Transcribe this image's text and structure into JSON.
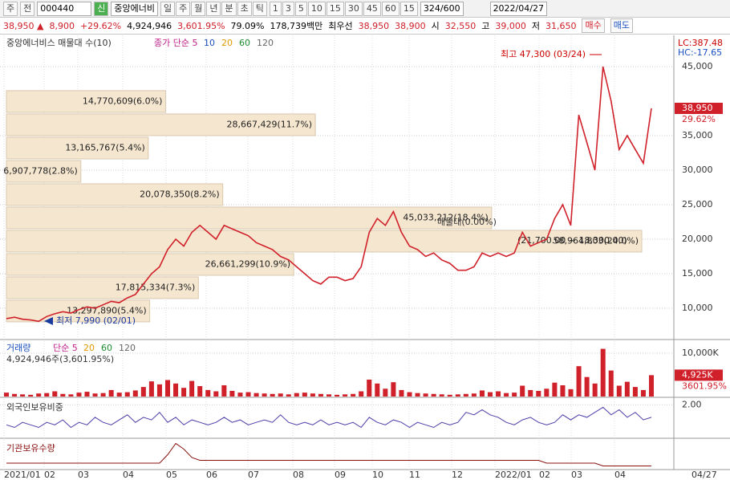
{
  "toolbar": {
    "market": "주",
    "prev": "전",
    "code": "000440",
    "badge": "신",
    "name": "중앙에너비",
    "periods": [
      "일",
      "주",
      "월",
      "년",
      "분",
      "초",
      "틱"
    ],
    "intervals": [
      "1",
      "3",
      "5",
      "10",
      "15",
      "30",
      "45",
      "60",
      "15"
    ],
    "count": "324",
    "count_max": "/600",
    "date": "2022/04/27"
  },
  "quote": {
    "price": "38,950 ▲",
    "change": "8,900",
    "rate": "+29.62%",
    "volume": "4,924,946",
    "volume_rate": "3,601.95%",
    "turnover": "79.09%",
    "amount": "178,739백만",
    "best_label": "최우선",
    "ask": "38,950",
    "bid": "38,900",
    "open_label": "시",
    "open": "32,550",
    "high_label": "고",
    "high": "39,000",
    "low_label": "저",
    "low": "31,650",
    "buy": "매수",
    "sell": "매도"
  },
  "chart_data": [
    {
      "type": "line",
      "title": "중앙에너비스 매물대 수(10)",
      "ma_legend": [
        "종가 단순 5",
        "10",
        "20",
        "60",
        "120"
      ],
      "values": [
        8500,
        8700,
        8400,
        8300,
        8100,
        8800,
        9200,
        9500,
        9300,
        9800,
        10200,
        10000,
        10500,
        11000,
        10800,
        11500,
        12000,
        13500,
        15000,
        16000,
        18500,
        20000,
        19000,
        21000,
        22000,
        21000,
        20000,
        22000,
        21500,
        21000,
        20500,
        19500,
        19000,
        18500,
        17500,
        17000,
        16000,
        15000,
        14000,
        13500,
        14500,
        14500,
        14000,
        14300,
        16000,
        21000,
        23000,
        22000,
        24000,
        21000,
        19000,
        18500,
        17500,
        18000,
        17000,
        16500,
        15500,
        15500,
        16000,
        18000,
        17500,
        18000,
        17500,
        18000,
        21000,
        19000,
        19500,
        20000,
        23000,
        25000,
        22000,
        38000,
        34000,
        30000,
        45000,
        40000,
        33000,
        35000,
        33000,
        31000,
        38950
      ],
      "color": "#d0202a",
      "ylim": [
        5580,
        49530
      ],
      "yticks": [
        {
          "value": 10000,
          "label": "10,000"
        },
        {
          "value": 15000,
          "label": "15,000"
        },
        {
          "value": 20000,
          "label": "20,000"
        },
        {
          "value": 25000,
          "label": "25,000"
        },
        {
          "value": 30000,
          "label": "30,000"
        },
        {
          "value": 35000,
          "label": "35,000"
        },
        {
          "value": 45000,
          "label": "45,000"
        }
      ],
      "profile": {
        "bins": [
          7910,
          11282,
          14654,
          18026,
          21398,
          24770,
          28142,
          31514,
          34886,
          38258,
          41630
        ],
        "values": [
          13297890,
          17815334,
          26661299,
          58964803,
          45033212,
          20078350,
          6907778,
          13165767,
          28667429,
          14770609
        ],
        "value_labels": [
          "13,297,890(5.4%)",
          "17,815,334(7.3%)",
          "26,661,299(10.9%)",
          "58,964,803(24.0%)",
          "45,033,212(18.4%)",
          "20,078,350(8.2%)",
          "6,907,778(2.8%)",
          "13,165,767(5.4%)",
          "28,667,429(11.7%)",
          "14,770,609(6.0%)"
        ]
      },
      "high_note": "최고 47,300 (03/24)",
      "low_note": "최저 7,990 (02/01)",
      "profile_note": "매물대(0.00%)",
      "range_note": "(21,700.00 ~ 18,300.00)",
      "lc": "LC:387.48",
      "hc": "HC:-17.65",
      "last": "38,950",
      "last_rate": "29.62%"
    },
    {
      "type": "bar",
      "title": "거래량",
      "ma_legend": [
        "단순 5",
        "20",
        "60",
        "120"
      ],
      "summary": "4,924,946주(3,601.95%)",
      "values": [
        900,
        600,
        500,
        400,
        700,
        800,
        1200,
        600,
        500,
        900,
        1100,
        700,
        800,
        1500,
        900,
        1000,
        1400,
        2200,
        3500,
        2800,
        3800,
        3000,
        2000,
        3600,
        2400,
        1500,
        1200,
        2600,
        1300,
        900,
        1000,
        800,
        700,
        600,
        700,
        500,
        800,
        900,
        700,
        600,
        500,
        400,
        500,
        600,
        1200,
        3900,
        3000,
        1800,
        3300,
        1500,
        1000,
        800,
        700,
        600,
        500,
        400,
        500,
        600,
        700,
        1400,
        1000,
        1200,
        800,
        900,
        2500,
        1500,
        1300,
        1800,
        3200,
        2600,
        1700,
        7000,
        4500,
        3000,
        11000,
        6000,
        2500,
        3400,
        2200,
        1500,
        4925
      ],
      "color": "#d0202a",
      "ylim": [
        0,
        12590
      ],
      "yticks": [
        {
          "value": 10000,
          "label": "10,000K"
        }
      ],
      "last": "4,925K",
      "last_rate": "3601.95%"
    },
    {
      "type": "line",
      "title": "외국인보유비중",
      "values": [
        1.2,
        1.1,
        1.3,
        1.2,
        1.1,
        1.3,
        1.2,
        1.4,
        1.1,
        1.3,
        1.2,
        1.5,
        1.3,
        1.2,
        1.4,
        1.6,
        1.3,
        1.5,
        1.4,
        1.7,
        1.3,
        1.5,
        1.2,
        1.4,
        1.3,
        1.2,
        1.3,
        1.5,
        1.3,
        1.4,
        1.2,
        1.3,
        1.4,
        1.3,
        1.6,
        1.3,
        1.2,
        1.3,
        1.2,
        1.4,
        1.2,
        1.3,
        1.2,
        1.3,
        1.1,
        1.5,
        1.3,
        1.2,
        1.4,
        1.3,
        1.1,
        1.3,
        1.2,
        1.1,
        1.3,
        1.2,
        1.3,
        1.7,
        1.6,
        1.8,
        1.6,
        1.5,
        1.3,
        1.2,
        1.4,
        1.5,
        1.3,
        1.2,
        1.3,
        1.6,
        1.4,
        1.6,
        1.5,
        1.7,
        1.9,
        1.6,
        1.8,
        1.5,
        1.7,
        1.4,
        1.5
      ],
      "color": "#4a3ea8",
      "ylim": [
        0.7,
        2.2
      ],
      "yticks": [
        {
          "value": 2,
          "label": "2.00"
        }
      ]
    },
    {
      "type": "line",
      "title": "기관보유수량",
      "values": [
        2,
        2,
        2,
        2,
        2,
        2,
        2,
        2,
        2,
        2,
        2,
        2,
        2,
        2,
        2,
        2,
        2,
        2,
        2,
        2,
        5,
        9,
        7,
        4,
        3,
        3,
        3,
        3,
        3,
        3,
        3,
        3,
        3,
        3,
        3,
        3,
        3,
        3,
        3,
        3,
        3,
        3,
        3,
        3,
        3,
        3,
        3,
        3,
        3,
        3,
        3,
        3,
        3,
        3,
        3,
        3,
        3,
        3,
        3,
        3,
        3,
        3,
        3,
        3,
        3,
        3,
        3,
        2,
        2,
        2,
        2,
        2,
        2,
        2,
        1,
        1,
        1,
        1,
        1,
        1,
        1
      ],
      "color": "#8a1010",
      "ylim": [
        0,
        10
      ]
    }
  ],
  "date_axis": {
    "labels": [
      "2021/01",
      "02",
      "03",
      "04",
      "05",
      "06",
      "07",
      "08",
      "09",
      "10",
      "11",
      "12",
      "2022/01",
      "02",
      "03",
      "04",
      "04/27"
    ]
  }
}
